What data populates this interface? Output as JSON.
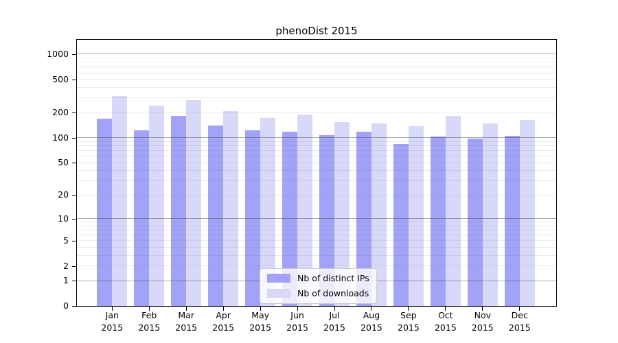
{
  "figure": {
    "background": "#ffffff"
  },
  "chart_data": {
    "type": "bar",
    "title": "phenoDist 2015",
    "categories": [
      "Jan",
      "Feb",
      "Mar",
      "Apr",
      "May",
      "Jun",
      "Jul",
      "Aug",
      "Sep",
      "Oct",
      "Nov",
      "Dec"
    ],
    "year": "2015",
    "series": [
      {
        "name": "Nb of distinct IPs",
        "color": "#a2a2f7",
        "values": [
          170,
          123,
          183,
          140,
          123,
          118,
          108,
          118,
          84,
          104,
          98,
          105
        ]
      },
      {
        "name": "Nb of downloads",
        "color": "#d8d8f9",
        "values": [
          317,
          243,
          283,
          209,
          173,
          190,
          155,
          149,
          139,
          182,
          148,
          164
        ]
      }
    ],
    "xlabel": "",
    "ylabel": "",
    "y_scale": "log1p",
    "y_ticks": [
      0,
      1,
      2,
      5,
      10,
      20,
      50,
      100,
      200,
      500,
      1000
    ],
    "ylim": [
      0,
      1485
    ],
    "grid": "on",
    "grid_major_at": [
      1,
      10,
      100,
      1000
    ],
    "legend_position": "lower center",
    "colors": {
      "spine": "#000000",
      "grid_major": "#ababae",
      "grid_minor": "#e9e9ea",
      "legend_border": "#cccccc"
    }
  }
}
